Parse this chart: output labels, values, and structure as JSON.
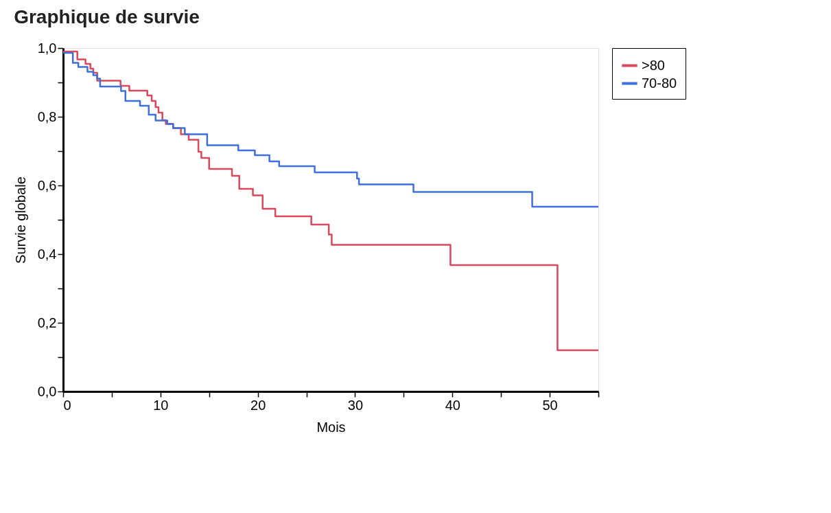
{
  "chart_data": {
    "type": "step",
    "title": "Graphique de survie",
    "xlabel": "Mois",
    "ylabel": "Survie globale",
    "xlim": [
      0,
      55
    ],
    "ylim": [
      0,
      1
    ],
    "xticks": [
      0,
      {
        "value": 5,
        "label": null
      },
      10,
      {
        "value": 15,
        "label": null
      },
      20,
      {
        "value": 25,
        "label": null
      },
      30,
      {
        "value": 35,
        "label": null
      },
      40,
      {
        "value": 45,
        "label": null
      },
      50,
      {
        "value": 55,
        "label": null
      }
    ],
    "yticks": [
      {
        "value": 0,
        "label": "0,0"
      },
      {
        "value": 0.1,
        "label": null
      },
      {
        "value": 0.2,
        "label": "0,2"
      },
      {
        "value": 0.3,
        "label": null
      },
      {
        "value": 0.4,
        "label": "0,4"
      },
      {
        "value": 0.5,
        "label": null
      },
      {
        "value": 0.6,
        "label": "0,6"
      },
      {
        "value": 0.7,
        "label": null
      },
      {
        "value": 0.8,
        "label": "0,8"
      },
      {
        "value": 0.9,
        "label": null
      },
      {
        "value": 1.0,
        "label": "1,0"
      }
    ],
    "grid": false,
    "legend": "top right",
    "marker": "none",
    "line_style": "solid",
    "series": [
      {
        "name": ">80",
        "color": "#d9485c",
        "x": [
          0,
          1.46,
          2.3,
          2.8,
          3.1,
          3.5,
          4.0,
          5.9,
          6.8,
          8.65,
          9.1,
          9.5,
          9.8,
          10.2,
          10.55,
          11.3,
          12.1,
          12.9,
          13.9,
          14.2,
          15.0,
          17.35,
          18.1,
          19.5,
          20.5,
          21.8,
          25.5,
          27.3,
          27.6,
          39.8,
          50.8,
          55
        ],
        "values": [
          0.99,
          0.967,
          0.954,
          0.94,
          0.928,
          0.905,
          0.905,
          0.89,
          0.876,
          0.862,
          0.846,
          0.828,
          0.812,
          0.79,
          0.779,
          0.767,
          0.749,
          0.733,
          0.698,
          0.68,
          0.648,
          0.628,
          0.59,
          0.571,
          0.532,
          0.51,
          0.486,
          0.457,
          0.427,
          0.368,
          0.12,
          0.12
        ]
      },
      {
        "name": "70-80",
        "color": "#3f6fdc",
        "x": [
          0,
          1.0,
          1.56,
          2.5,
          3.1,
          3.5,
          3.8,
          5.95,
          6.4,
          7.9,
          8.8,
          9.5,
          10.7,
          11.3,
          12.5,
          14.8,
          18.0,
          19.7,
          21.2,
          22.2,
          25.85,
          30.2,
          30.4,
          36.0,
          48.2,
          55
        ],
        "values": [
          0.986,
          0.957,
          0.945,
          0.931,
          0.921,
          0.911,
          0.888,
          0.875,
          0.846,
          0.832,
          0.806,
          0.789,
          0.779,
          0.767,
          0.749,
          0.717,
          0.702,
          0.688,
          0.67,
          0.656,
          0.638,
          0.62,
          0.603,
          0.581,
          0.538,
          0.538
        ]
      }
    ]
  }
}
